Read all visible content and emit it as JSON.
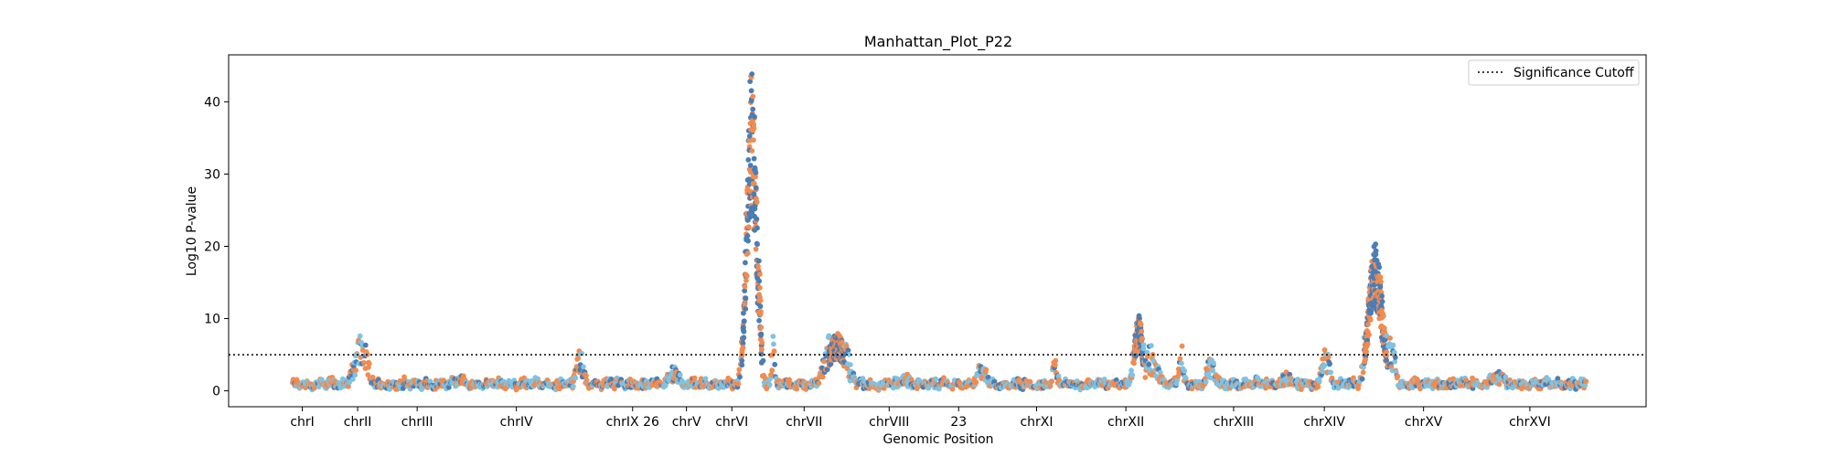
{
  "chart_data": {
    "type": "scatter",
    "title": "Manhattan_Plot_P22",
    "xlabel": "Genomic Position",
    "ylabel": "Log10 P-value",
    "ylim": [
      -2.2,
      46.5
    ],
    "yticks": [
      0,
      10,
      20,
      30,
      40
    ],
    "xlim": [
      0,
      1000
    ],
    "grid": false,
    "legend": {
      "position": "top-right",
      "entries": [
        "Significance Cutoff"
      ]
    },
    "cutoff": 5,
    "colors": {
      "a": "#4a7db5",
      "b": "#f28b4f",
      "c": "#7ec3e3"
    },
    "xticks": [
      {
        "label": "chrI",
        "x": 52
      },
      {
        "label": "chrII",
        "x": 91
      },
      {
        "label": "chrIII",
        "x": 133
      },
      {
        "label": "chrIV",
        "x": 203
      },
      {
        "label": "chrIX 26",
        "x": 285
      },
      {
        "label": "chrV",
        "x": 323
      },
      {
        "label": "chrVI",
        "x": 355
      },
      {
        "label": "chrVII",
        "x": 406
      },
      {
        "label": "chrVIII",
        "x": 466
      },
      {
        "label": "23",
        "x": 515
      },
      {
        "label": "chrXI",
        "x": 570
      },
      {
        "label": "chrXII",
        "x": 633
      },
      {
        "label": "chrXIII",
        "x": 709
      },
      {
        "label": "chrXIV",
        "x": 773
      },
      {
        "label": "chrXV",
        "x": 843
      },
      {
        "label": "chrXVI",
        "x": 918
      }
    ],
    "peaks": [
      {
        "x": 93,
        "y": 5.8,
        "w": 5
      },
      {
        "x": 164,
        "y": 1.6,
        "w": 4
      },
      {
        "x": 248,
        "y": 4.2,
        "w": 3
      },
      {
        "x": 314,
        "y": 2.8,
        "w": 4
      },
      {
        "x": 369,
        "y": 44.5,
        "w": 3.5
      },
      {
        "x": 374,
        "y": 18,
        "w": 1.5
      },
      {
        "x": 384,
        "y": 5.5,
        "w": 1.5
      },
      {
        "x": 429,
        "y": 8,
        "w": 7
      },
      {
        "x": 478,
        "y": 1.5,
        "w": 6
      },
      {
        "x": 531,
        "y": 2.8,
        "w": 4
      },
      {
        "x": 583,
        "y": 3.2,
        "w": 2
      },
      {
        "x": 642,
        "y": 10.5,
        "w": 3
      },
      {
        "x": 651,
        "y": 4.5,
        "w": 5
      },
      {
        "x": 672,
        "y": 4.6,
        "w": 2
      },
      {
        "x": 693,
        "y": 3.2,
        "w": 4
      },
      {
        "x": 746,
        "y": 1.8,
        "w": 5
      },
      {
        "x": 774,
        "y": 4.5,
        "w": 3
      },
      {
        "x": 809,
        "y": 20.5,
        "w": 5
      },
      {
        "x": 820,
        "y": 5.5,
        "w": 3
      },
      {
        "x": 895,
        "y": 2.2,
        "w": 6
      }
    ],
    "x_start": 45,
    "x_end": 958
  }
}
